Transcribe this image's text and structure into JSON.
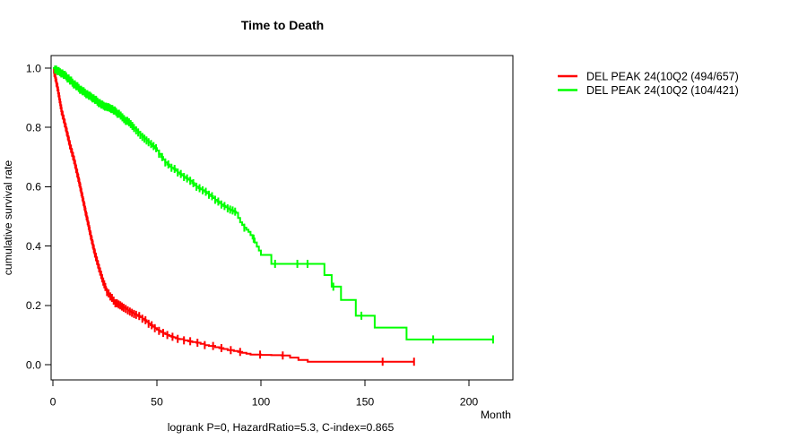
{
  "chart_data": {
    "type": "line",
    "subtype": "kaplan-meier-step",
    "title": "Time to Death",
    "subtitle": "logrank P=0, HazardRatio=5.3, C-index=0.865",
    "xlabel": "Month",
    "ylabel": "cumulative survival rate",
    "xlim": [
      0,
      220
    ],
    "ylim": [
      0.0,
      1.0
    ],
    "grid": false,
    "legend_position": "top-right-outside",
    "x_ticks": [
      0,
      50,
      100,
      150,
      200
    ],
    "x_tick_labels": [
      "0",
      "50",
      "100",
      "150",
      "200"
    ],
    "y_ticks": [
      0.0,
      0.2,
      0.4,
      0.6,
      0.8,
      1.0
    ],
    "y_tick_labels": [
      "0.0",
      "0.2",
      "0.4",
      "0.6",
      "0.8",
      "1.0"
    ],
    "series": [
      {
        "name": "DEL PEAK 24(10Q2 (494/657)",
        "color": "#ff0000",
        "events": "494/657",
        "points": [
          [
            0,
            1.0
          ],
          [
            0.5,
            0.984
          ],
          [
            1,
            0.968
          ],
          [
            1.5,
            0.951
          ],
          [
            2,
            0.935
          ],
          [
            2.5,
            0.915
          ],
          [
            3,
            0.895
          ],
          [
            3.5,
            0.875
          ],
          [
            4,
            0.855
          ],
          [
            4.5,
            0.841
          ],
          [
            5,
            0.828
          ],
          [
            5.5,
            0.814
          ],
          [
            6,
            0.8
          ],
          [
            6.5,
            0.785
          ],
          [
            7,
            0.77
          ],
          [
            7.5,
            0.755
          ],
          [
            8,
            0.74
          ],
          [
            8.5,
            0.728
          ],
          [
            9,
            0.715
          ],
          [
            9.5,
            0.703
          ],
          [
            10,
            0.69
          ],
          [
            10.5,
            0.675
          ],
          [
            11,
            0.66
          ],
          [
            11.5,
            0.645
          ],
          [
            12,
            0.63
          ],
          [
            12.5,
            0.614
          ],
          [
            13,
            0.598
          ],
          [
            13.5,
            0.581
          ],
          [
            14,
            0.565
          ],
          [
            14.5,
            0.549
          ],
          [
            15,
            0.533
          ],
          [
            15.5,
            0.516
          ],
          [
            16,
            0.5
          ],
          [
            16.5,
            0.484
          ],
          [
            17,
            0.468
          ],
          [
            17.5,
            0.451
          ],
          [
            18,
            0.435
          ],
          [
            18.5,
            0.42
          ],
          [
            19,
            0.405
          ],
          [
            19.5,
            0.39
          ],
          [
            20,
            0.375
          ],
          [
            20.5,
            0.363
          ],
          [
            21,
            0.35
          ],
          [
            21.5,
            0.338
          ],
          [
            22,
            0.325
          ],
          [
            22.5,
            0.314
          ],
          [
            23,
            0.303
          ],
          [
            23.5,
            0.291
          ],
          [
            24,
            0.28
          ],
          [
            24.5,
            0.271
          ],
          [
            25,
            0.262
          ],
          [
            25.5,
            0.253
          ],
          [
            26,
            0.245
          ],
          [
            26.5,
            0.24
          ],
          [
            27,
            0.235
          ],
          [
            27.5,
            0.23
          ],
          [
            28,
            0.225
          ],
          [
            28.5,
            0.22
          ],
          [
            29,
            0.216
          ],
          [
            29.5,
            0.211
          ],
          [
            30,
            0.207
          ],
          [
            31,
            0.203
          ],
          [
            32,
            0.2
          ],
          [
            33,
            0.196
          ],
          [
            34,
            0.192
          ],
          [
            35,
            0.188
          ],
          [
            36,
            0.183
          ],
          [
            37,
            0.179
          ],
          [
            38,
            0.175
          ],
          [
            39,
            0.171
          ],
          [
            40,
            0.168
          ],
          [
            41,
            0.164
          ],
          [
            42,
            0.16
          ],
          [
            43,
            0.155
          ],
          [
            44,
            0.15
          ],
          [
            45,
            0.144
          ],
          [
            46,
            0.138
          ],
          [
            47,
            0.133
          ],
          [
            48,
            0.128
          ],
          [
            49,
            0.123
          ],
          [
            50,
            0.118
          ],
          [
            51,
            0.114
          ],
          [
            52,
            0.11
          ],
          [
            53,
            0.107
          ],
          [
            54,
            0.103
          ],
          [
            55,
            0.1
          ],
          [
            56,
            0.097
          ],
          [
            57,
            0.094
          ],
          [
            58,
            0.092
          ],
          [
            59,
            0.089
          ],
          [
            60,
            0.087
          ],
          [
            61,
            0.086
          ],
          [
            63,
            0.082
          ],
          [
            65,
            0.079
          ],
          [
            67,
            0.076
          ],
          [
            69,
            0.074
          ],
          [
            71,
            0.07
          ],
          [
            73,
            0.066
          ],
          [
            75,
            0.063
          ],
          [
            78,
            0.059
          ],
          [
            80,
            0.056
          ],
          [
            82,
            0.053
          ],
          [
            84,
            0.049
          ],
          [
            87,
            0.046
          ],
          [
            89,
            0.043
          ],
          [
            91,
            0.04
          ],
          [
            93,
            0.037
          ],
          [
            95,
            0.034
          ],
          [
            100,
            0.033
          ],
          [
            105,
            0.032
          ],
          [
            110,
            0.031
          ],
          [
            114,
            0.024
          ],
          [
            118,
            0.016
          ],
          [
            122.5,
            0.01
          ],
          [
            173.6,
            0.01
          ]
        ],
        "censor_months": [
          0.7,
          1.2,
          1.7,
          2.2,
          2.7,
          3.2,
          3.7,
          4.2,
          4.7,
          5.2,
          5.7,
          6.2,
          6.7,
          7.2,
          7.7,
          8.2,
          8.7,
          9.2,
          9.7,
          10.2,
          10.7,
          11.2,
          11.7,
          12.2,
          12.7,
          13.2,
          13.7,
          14.2,
          14.7,
          15.2,
          15.7,
          16.2,
          16.7,
          17.2,
          17.7,
          18.2,
          18.7,
          19.2,
          19.7,
          20.2,
          20.7,
          21.2,
          21.7,
          22.2,
          22.7,
          23.2,
          23.7,
          24.2,
          24.7,
          25.2,
          26,
          26.8,
          27.6,
          28.4,
          29.2,
          30,
          30.8,
          31.6,
          32.4,
          33.2,
          34,
          35,
          36,
          37,
          38,
          39,
          40,
          41.5,
          43,
          44.5,
          46,
          47.5,
          49,
          51,
          53,
          55,
          57.5,
          60,
          63,
          66,
          69.5,
          73,
          77,
          81,
          85.5,
          90,
          99.6,
          110.5,
          158.5,
          173.6
        ]
      },
      {
        "name": "DEL PEAK 24(10Q2 (104/421)",
        "color": "#00ff00",
        "events": "104/421",
        "points": [
          [
            0,
            1.0
          ],
          [
            1,
            0.995
          ],
          [
            2,
            0.99
          ],
          [
            3,
            0.986
          ],
          [
            4,
            0.982
          ],
          [
            5,
            0.977
          ],
          [
            6,
            0.972
          ],
          [
            7,
            0.965
          ],
          [
            8,
            0.958
          ],
          [
            9,
            0.951
          ],
          [
            10,
            0.945
          ],
          [
            11,
            0.939
          ],
          [
            12,
            0.933
          ],
          [
            13,
            0.927
          ],
          [
            14,
            0.922
          ],
          [
            15,
            0.917
          ],
          [
            16,
            0.912
          ],
          [
            17,
            0.907
          ],
          [
            18,
            0.903
          ],
          [
            19,
            0.898
          ],
          [
            20,
            0.893
          ],
          [
            21,
            0.887
          ],
          [
            22,
            0.882
          ],
          [
            23,
            0.877
          ],
          [
            24,
            0.873
          ],
          [
            25,
            0.87
          ],
          [
            26,
            0.868
          ],
          [
            27,
            0.865
          ],
          [
            28,
            0.862
          ],
          [
            29,
            0.857
          ],
          [
            30,
            0.852
          ],
          [
            31,
            0.846
          ],
          [
            32,
            0.84
          ],
          [
            33,
            0.834
          ],
          [
            34,
            0.828
          ],
          [
            35,
            0.822
          ],
          [
            36,
            0.817
          ],
          [
            37,
            0.811
          ],
          [
            38,
            0.805
          ],
          [
            39,
            0.798
          ],
          [
            40,
            0.79
          ],
          [
            41,
            0.783
          ],
          [
            42,
            0.775
          ],
          [
            43,
            0.768
          ],
          [
            44,
            0.762
          ],
          [
            45,
            0.756
          ],
          [
            46,
            0.75
          ],
          [
            47,
            0.744
          ],
          [
            48,
            0.737
          ],
          [
            49,
            0.73
          ],
          [
            50,
            0.722
          ],
          [
            51,
            0.711
          ],
          [
            52,
            0.7
          ],
          [
            53,
            0.691
          ],
          [
            54,
            0.682
          ],
          [
            55,
            0.675
          ],
          [
            56,
            0.668
          ],
          [
            57,
            0.664
          ],
          [
            58,
            0.66
          ],
          [
            59,
            0.654
          ],
          [
            60,
            0.648
          ],
          [
            61,
            0.643
          ],
          [
            62,
            0.638
          ],
          [
            63,
            0.633
          ],
          [
            64,
            0.628
          ],
          [
            65,
            0.624
          ],
          [
            66,
            0.62
          ],
          [
            67,
            0.612
          ],
          [
            68,
            0.605
          ],
          [
            69,
            0.6
          ],
          [
            70,
            0.595
          ],
          [
            71,
            0.591
          ],
          [
            72,
            0.588
          ],
          [
            73,
            0.583
          ],
          [
            74,
            0.578
          ],
          [
            75,
            0.573
          ],
          [
            76,
            0.568
          ],
          [
            77,
            0.562
          ],
          [
            78,
            0.556
          ],
          [
            79,
            0.55
          ],
          [
            80,
            0.545
          ],
          [
            81,
            0.54
          ],
          [
            82,
            0.535
          ],
          [
            83,
            0.531
          ],
          [
            84,
            0.527
          ],
          [
            85,
            0.523
          ],
          [
            86,
            0.52
          ],
          [
            87,
            0.516
          ],
          [
            88,
            0.512
          ],
          [
            89,
            0.495
          ],
          [
            90,
            0.48
          ],
          [
            91,
            0.471
          ],
          [
            92,
            0.462
          ],
          [
            93,
            0.455
          ],
          [
            94,
            0.448
          ],
          [
            95,
            0.437
          ],
          [
            96,
            0.425
          ],
          [
            97,
            0.412
          ],
          [
            98,
            0.398
          ],
          [
            99,
            0.385
          ],
          [
            100,
            0.37
          ],
          [
            105,
            0.34
          ],
          [
            130.5,
            0.302
          ],
          [
            134,
            0.263
          ],
          [
            138.5,
            0.218
          ],
          [
            145.6,
            0.165
          ],
          [
            154.7,
            0.125
          ],
          [
            170,
            0.085
          ],
          [
            211.6,
            0.085
          ]
        ],
        "censor_months": [
          1,
          1.6,
          2.2,
          2.8,
          3.4,
          4,
          4.6,
          5.2,
          5.8,
          6.4,
          7,
          7.6,
          8.2,
          8.8,
          9.4,
          10,
          10.6,
          11.2,
          11.8,
          12.4,
          13,
          13.6,
          14.2,
          14.8,
          15.4,
          16,
          16.6,
          17.2,
          17.8,
          18.4,
          19,
          19.6,
          20.2,
          20.8,
          21.4,
          22,
          22.6,
          23.2,
          23.8,
          24.4,
          25,
          25.6,
          26.2,
          26.8,
          27.4,
          28,
          28.6,
          29.2,
          29.8,
          30.4,
          31,
          31.8,
          32.6,
          33.4,
          34.2,
          35,
          35.8,
          36.6,
          37.4,
          38.2,
          39,
          40,
          41,
          42,
          43,
          44,
          45,
          46,
          47.2,
          48.4,
          49.6,
          51,
          52.5,
          54,
          55.5,
          57,
          58.5,
          60,
          61.5,
          63,
          64.5,
          66,
          67.5,
          69,
          70.5,
          72,
          73.5,
          75,
          76.5,
          78,
          79.5,
          81,
          82.5,
          84,
          85.2,
          86.4,
          87.6,
          92,
          96.5,
          106.8,
          117.5,
          122.4,
          134.8,
          148.3,
          182.8,
          211.6
        ]
      }
    ]
  }
}
